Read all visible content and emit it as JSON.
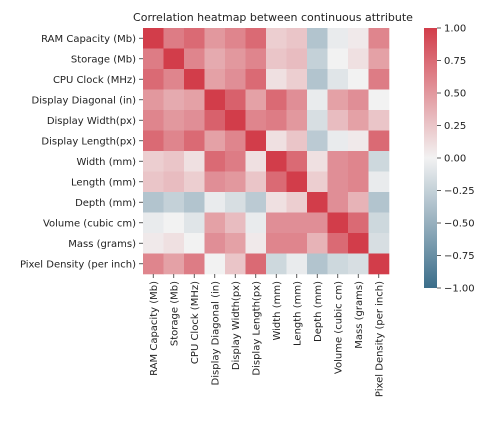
{
  "chart_data": {
    "type": "heatmap",
    "title": "Correlation heatmap between continuous attribute",
    "row_labels": [
      "RAM Capacity (Mb)",
      "Storage (Mb)",
      "CPU Clock (MHz)",
      "Display Diagonal (in)",
      "Display Width(px)",
      "Display Length(px)",
      "Width (mm)",
      "Length (mm)",
      "Depth (mm)",
      "Volume (cubic cm)",
      "Mass (grams)",
      "Pixel Density (per inch)"
    ],
    "col_labels": [
      "RAM Capacity (Mb)",
      "Storage (Mb)",
      "CPU Clock (MHz)",
      "Display Diagonal (in)",
      "Display Width(px)",
      "Display Length(px)",
      "Width (mm)",
      "Length (mm)",
      "Depth (mm)",
      "Volume (cubic cm)",
      "Mass (grams)",
      "Pixel Density (per inch)"
    ],
    "values": [
      [
        1.0,
        0.65,
        0.75,
        0.5,
        0.6,
        0.75,
        0.2,
        0.25,
        -0.35,
        -0.05,
        0.05,
        0.6
      ],
      [
        0.65,
        1.0,
        0.6,
        0.4,
        0.5,
        0.6,
        0.25,
        0.3,
        -0.25,
        0.0,
        0.1,
        0.45
      ],
      [
        0.75,
        0.6,
        1.0,
        0.45,
        0.55,
        0.75,
        0.1,
        0.2,
        -0.35,
        -0.1,
        0.0,
        0.65
      ],
      [
        0.5,
        0.4,
        0.45,
        1.0,
        0.8,
        0.45,
        0.75,
        0.55,
        -0.05,
        0.45,
        0.55,
        0.0
      ],
      [
        0.6,
        0.5,
        0.55,
        0.8,
        1.0,
        0.6,
        0.65,
        0.5,
        -0.15,
        0.3,
        0.45,
        0.25
      ],
      [
        0.75,
        0.6,
        0.75,
        0.45,
        0.6,
        1.0,
        0.1,
        0.25,
        -0.3,
        -0.05,
        0.05,
        0.75
      ],
      [
        0.2,
        0.25,
        0.1,
        0.75,
        0.65,
        0.1,
        1.0,
        0.75,
        0.1,
        0.55,
        0.6,
        -0.2
      ],
      [
        0.25,
        0.3,
        0.2,
        0.55,
        0.5,
        0.25,
        0.75,
        1.0,
        0.2,
        0.55,
        0.6,
        -0.05
      ],
      [
        -0.35,
        -0.25,
        -0.35,
        -0.05,
        -0.15,
        -0.3,
        0.1,
        0.2,
        1.0,
        0.55,
        0.35,
        -0.35
      ],
      [
        -0.05,
        0.0,
        -0.1,
        0.45,
        0.3,
        -0.05,
        0.55,
        0.55,
        0.55,
        1.0,
        0.75,
        -0.2
      ],
      [
        0.05,
        0.1,
        0.0,
        0.55,
        0.45,
        0.05,
        0.6,
        0.6,
        0.35,
        0.75,
        1.0,
        -0.15
      ],
      [
        0.6,
        0.45,
        0.65,
        0.0,
        0.25,
        0.75,
        -0.2,
        -0.05,
        -0.35,
        -0.2,
        -0.15,
        1.0
      ]
    ],
    "vmin": -1.0,
    "vmax": 1.0,
    "colorbar_ticks": [
      "1.00",
      "0.75",
      "0.50",
      "0.25",
      "0.00",
      "−0.25",
      "−0.50",
      "−0.75",
      "−1.00"
    ],
    "colorbar_values": [
      1.0,
      0.75,
      0.5,
      0.25,
      0.0,
      -0.25,
      -0.5,
      -0.75,
      -1.0
    ],
    "colormap": {
      "negative": "#3b6e8a",
      "center": "#f2f2f2",
      "positive": "#d23d4a"
    }
  }
}
